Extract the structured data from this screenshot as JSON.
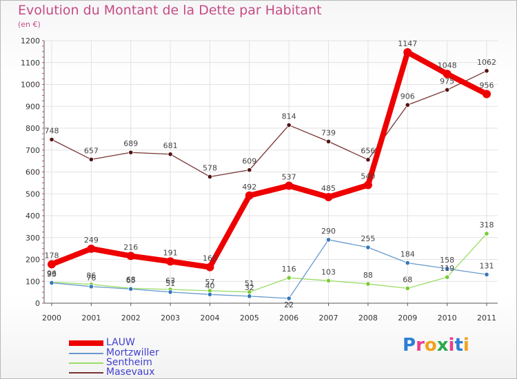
{
  "chart_data": {
    "type": "line",
    "title": "Evolution du Montant de la Dette par Habitant",
    "subtitle": "(en €)",
    "x": [
      "2000",
      "2001",
      "2002",
      "2003",
      "2004",
      "2005",
      "2006",
      "2007",
      "2008",
      "2009",
      "2010",
      "2011"
    ],
    "ylim": [
      0,
      1200
    ],
    "yticks": [
      0,
      100,
      200,
      300,
      400,
      500,
      600,
      700,
      800,
      900,
      1000,
      1100,
      1200
    ],
    "grid": true,
    "legend_position": "bottom-left",
    "series": [
      {
        "name": "LAUW",
        "color": "#ee0000",
        "values": [
          178,
          249,
          216,
          191,
          165,
          492,
          537,
          485,
          540,
          1147,
          1048,
          956
        ]
      },
      {
        "name": "Mortzwiller",
        "color": "#6699cc",
        "values": [
          93,
          76,
          65,
          51,
          40,
          32,
          22,
          290,
          255,
          184,
          158,
          131
        ]
      },
      {
        "name": "Sentheim",
        "color": "#99dd66",
        "values": [
          96,
          86,
          68,
          63,
          57,
          51,
          116,
          103,
          88,
          68,
          119,
          318
        ]
      },
      {
        "name": "Masevaux",
        "color": "#773333",
        "values": [
          748,
          657,
          689,
          681,
          578,
          609,
          814,
          739,
          656,
          906,
          975,
          1062
        ]
      }
    ]
  },
  "logo": {
    "text": "Proxiti"
  }
}
